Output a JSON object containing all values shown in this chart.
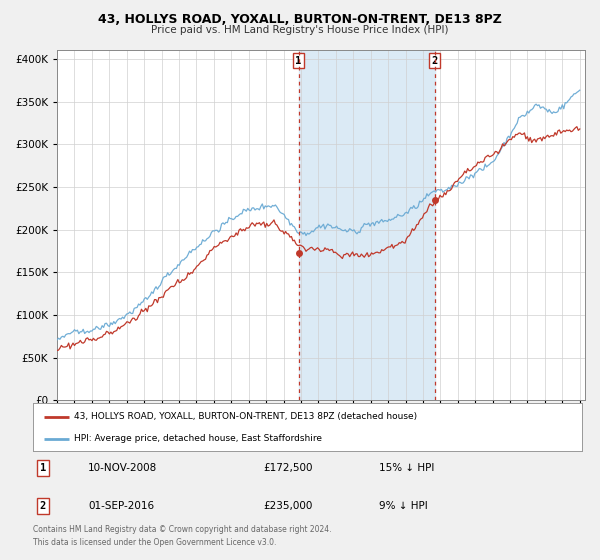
{
  "title": "43, HOLLYS ROAD, YOXALL, BURTON-ON-TRENT, DE13 8PZ",
  "subtitle": "Price paid vs. HM Land Registry's House Price Index (HPI)",
  "legend_entry1": "43, HOLLYS ROAD, YOXALL, BURTON-ON-TRENT, DE13 8PZ (detached house)",
  "legend_entry2": "HPI: Average price, detached house, East Staffordshire",
  "sale1_label": "1",
  "sale1_date": "10-NOV-2008",
  "sale1_price": "£172,500",
  "sale1_hpi": "15% ↓ HPI",
  "sale2_label": "2",
  "sale2_date": "01-SEP-2016",
  "sale2_price": "£235,000",
  "sale2_hpi": "9% ↓ HPI",
  "sale1_x": 2008.86,
  "sale1_y": 172500,
  "sale2_x": 2016.67,
  "sale2_y": 235000,
  "footer": "Contains HM Land Registry data © Crown copyright and database right 2024.\nThis data is licensed under the Open Government Licence v3.0.",
  "hpi_color": "#6aaad4",
  "price_color": "#c0392b",
  "shade_color": "#dbeaf5",
  "background_color": "#f0f0f0",
  "plot_background": "#ffffff",
  "ylim": [
    0,
    410000
  ],
  "xlim_start": 1995.0,
  "xlim_end": 2025.3,
  "vline1_x": 2008.86,
  "vline2_x": 2016.67,
  "yticks": [
    0,
    50000,
    100000,
    150000,
    200000,
    250000,
    300000,
    350000,
    400000
  ]
}
